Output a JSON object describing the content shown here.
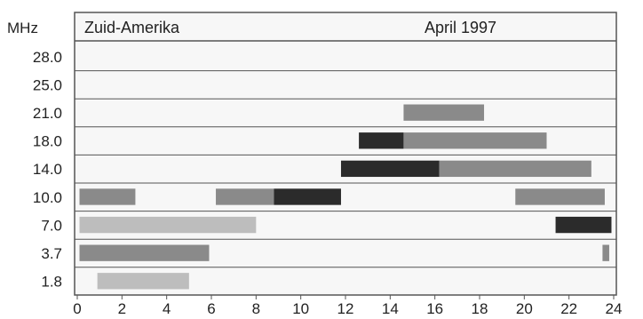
{
  "chart_data": {
    "type": "bar",
    "title": "Zuid-Amerika",
    "subtitle": "April 1997",
    "ylabel": "MHz",
    "xlabel": "",
    "x_ticks": [
      "0",
      "2",
      "4",
      "6",
      "8",
      "10",
      "12",
      "14",
      "16",
      "18",
      "20",
      "22",
      "24"
    ],
    "xlim": [
      0,
      24
    ],
    "categories": [
      "28.0",
      "25.0",
      "21.0",
      "18.0",
      "14.0",
      "10.0",
      "7.0",
      "3.7",
      "1.8"
    ],
    "grid": true,
    "series": [
      {
        "category": "21.0",
        "segments": [
          {
            "start": 14.6,
            "end": 18.2,
            "level": "medium"
          }
        ]
      },
      {
        "category": "18.0",
        "segments": [
          {
            "start": 12.6,
            "end": 14.6,
            "level": "high"
          },
          {
            "start": 14.6,
            "end": 21.0,
            "level": "medium"
          }
        ]
      },
      {
        "category": "14.0",
        "segments": [
          {
            "start": 11.8,
            "end": 16.2,
            "level": "high"
          },
          {
            "start": 16.2,
            "end": 23.0,
            "level": "medium"
          }
        ]
      },
      {
        "category": "10.0",
        "segments": [
          {
            "start": 0.1,
            "end": 2.6,
            "level": "medium"
          },
          {
            "start": 6.2,
            "end": 8.8,
            "level": "medium"
          },
          {
            "start": 8.8,
            "end": 11.8,
            "level": "high"
          },
          {
            "start": 19.6,
            "end": 23.6,
            "level": "medium"
          }
        ]
      },
      {
        "category": "7.0",
        "segments": [
          {
            "start": 0.1,
            "end": 8.0,
            "level": "low"
          },
          {
            "start": 21.4,
            "end": 23.9,
            "level": "high"
          }
        ]
      },
      {
        "category": "3.7",
        "segments": [
          {
            "start": 0.1,
            "end": 5.9,
            "level": "medium"
          },
          {
            "start": 23.5,
            "end": 23.8,
            "level": "medium"
          }
        ]
      },
      {
        "category": "1.8",
        "segments": [
          {
            "start": 0.9,
            "end": 5.0,
            "level": "low"
          }
        ]
      }
    ],
    "colors": {
      "low": "#bdbdbd",
      "medium": "#8a8a8a",
      "high": "#2b2b2b",
      "frame": "#555555"
    }
  }
}
